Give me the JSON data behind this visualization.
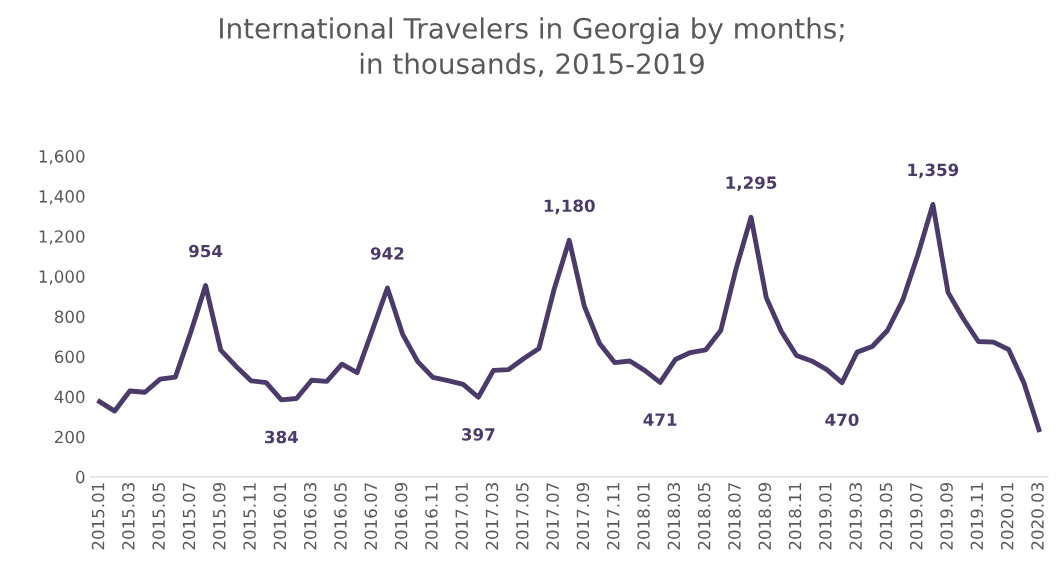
{
  "chart_data": {
    "type": "line",
    "title": "International Travelers in Georgia by months;\nin thousands, 2015-2019",
    "categories": [
      "2015.01",
      null,
      "2015.03",
      null,
      "2015.05",
      null,
      "2015.07",
      null,
      "2015.09",
      null,
      "2015.11",
      null,
      "2016.01",
      null,
      "2016.03",
      null,
      "2016.05",
      null,
      "2016.07",
      null,
      "2016.09",
      null,
      "2016.11",
      null,
      "2017.01",
      null,
      "2017.03",
      null,
      "2017.05",
      null,
      "2017.07",
      null,
      "2017.09",
      null,
      "2017.11",
      null,
      "2018.01",
      null,
      "2018.03",
      null,
      "2018.05",
      null,
      "2018.07",
      null,
      "2018.09",
      null,
      "2018.11",
      null,
      "2019.01",
      null,
      "2019.03",
      null,
      "2019.05",
      null,
      "2019.07",
      null,
      "2019.09",
      null,
      "2019.11",
      null,
      "2020.01",
      null,
      "2020.03"
    ],
    "series": [
      {
        "color": "#4b3b6b",
        "values": [
          375,
          328,
          428,
          422,
          487,
          497,
          716,
          954,
          632,
          552,
          479,
          470,
          384,
          391,
          482,
          476,
          562,
          520,
          730,
          942,
          712,
          575,
          496,
          480,
          461,
          397,
          531,
          535,
          590,
          640,
          935,
          1180,
          850,
          665,
          570,
          578,
          530,
          471,
          585,
          620,
          633,
          730,
          1035,
          1295,
          895,
          725,
          605,
          578,
          535,
          470,
          622,
          650,
          730,
          880,
          1105,
          1359,
          920,
          790,
          675,
          672,
          635,
          470,
          235
        ],
        "value_labels": [
          null,
          null,
          null,
          null,
          null,
          null,
          null,
          "954",
          null,
          null,
          null,
          null,
          "384",
          null,
          null,
          null,
          null,
          null,
          null,
          "942",
          null,
          null,
          null,
          null,
          null,
          "397",
          null,
          null,
          null,
          null,
          null,
          "1,180",
          null,
          null,
          null,
          null,
          null,
          "471",
          null,
          null,
          null,
          null,
          null,
          "1,295",
          null,
          null,
          null,
          null,
          null,
          "470",
          null,
          null,
          null,
          null,
          null,
          "1,359",
          null,
          null,
          null,
          null,
          null,
          null,
          null
        ]
      }
    ],
    "ylim": [
      0,
      1600
    ],
    "yticks": [
      0,
      {
        "value": 200,
        "label": "200"
      },
      {
        "value": 400,
        "label": "400"
      },
      {
        "value": 600,
        "label": "600"
      },
      {
        "value": 800,
        "label": "800"
      },
      {
        "value": 1000,
        "label": "1,000"
      },
      {
        "value": 1200,
        "label": "1,200"
      },
      {
        "value": 1400,
        "label": "1,400"
      },
      {
        "value": 1600,
        "label": "1,600"
      }
    ],
    "grid": false,
    "legend": false,
    "marker": "none",
    "line_style": "solid"
  }
}
